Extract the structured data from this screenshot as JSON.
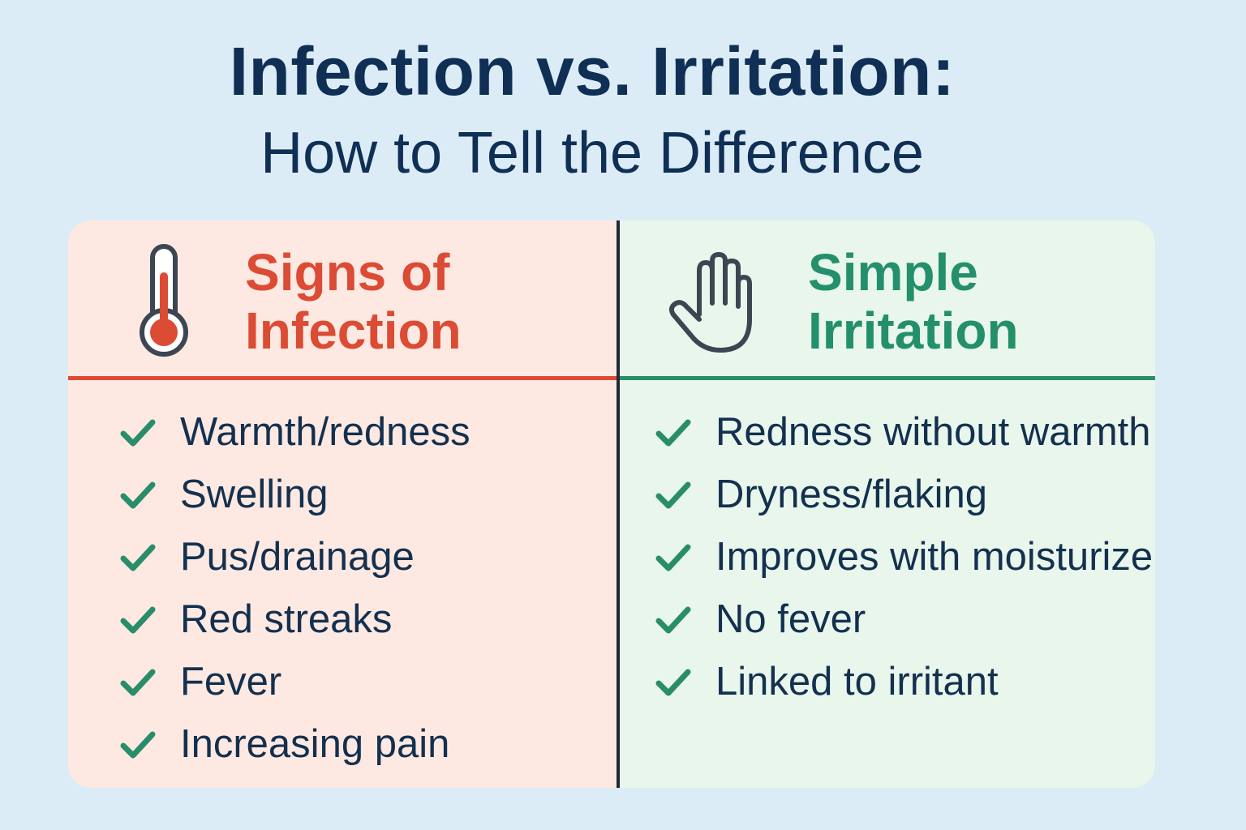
{
  "title": {
    "main": "Infection vs. Irritation:",
    "sub": "How to Tell the Difference"
  },
  "infection": {
    "heading_line1": "Signs of",
    "heading_line2": "Infection",
    "icon": "thermometer-icon",
    "color": "#dc4b34",
    "items": [
      "Warmth/redness",
      "Swelling",
      "Pus/drainage",
      "Red streaks",
      "Fever",
      "Increasing pain"
    ]
  },
  "irritation": {
    "heading_line1": "Simple",
    "heading_line2": "Irritation",
    "icon": "hand-icon",
    "color": "#24906b",
    "items": [
      "Redness without warmth",
      "Dryness/flaking",
      "Improves with moisturizer",
      "No fever",
      "Linked to irritant"
    ]
  },
  "colors": {
    "background": "#dcecf6",
    "title": "#0f2f55",
    "check": "#2a8d6a",
    "left_panel": "#fde9e2",
    "right_panel": "#e8f6ec"
  }
}
